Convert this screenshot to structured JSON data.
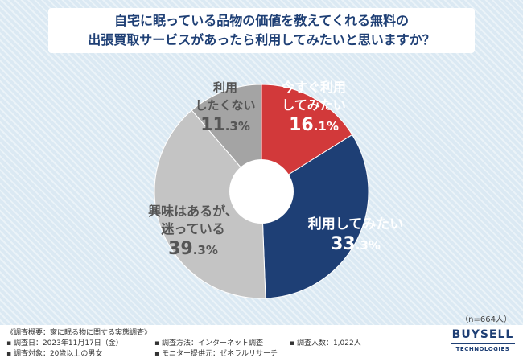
{
  "title": {
    "line1": "自宅に眠っている品物の価値を教えてくれる無料の",
    "line2": "出張買取サービスがあったら利用してみたいと思いますか？"
  },
  "chart_data": {
    "type": "pie",
    "start": "12 o'clock, clockwise",
    "slices": [
      {
        "label_lines": [
          "今すぐ利用",
          "してみたい"
        ],
        "pct_int": "16",
        "pct_dec": ".1%",
        "value": 16.1,
        "color": "#d2393a"
      },
      {
        "label_lines": [
          "利用してみたい"
        ],
        "pct_int": "33",
        "pct_dec": ".3%",
        "value": 33.3,
        "color": "#1e3f75"
      },
      {
        "label_lines": [
          "興味はあるが、",
          "迷っている"
        ],
        "pct_int": "39",
        "pct_dec": ".3%",
        "value": 39.3,
        "color": "#c4c4c4"
      },
      {
        "label_lines": [
          "利用",
          "したくない"
        ],
        "pct_int": "11",
        "pct_dec": ".3%",
        "value": 11.3,
        "color": "#a4a4a4"
      }
    ],
    "sample": "（n=664人）"
  },
  "footer": {
    "overview": "《調査概要：家に眠る物に関する実態調査》",
    "date": "▪ 調査日：2023年11月17日（金）",
    "target": "▪ 調査対象：20歳以上の男女",
    "method": "▪ 調査方法：インターネット調査",
    "provider": "▪ モニター提供元：ゼネラルリサーチ",
    "count": "▪ 調査人数：1,022人"
  },
  "logo": {
    "main": "BUYSELL",
    "sub": "TECHNOLOGIES"
  }
}
